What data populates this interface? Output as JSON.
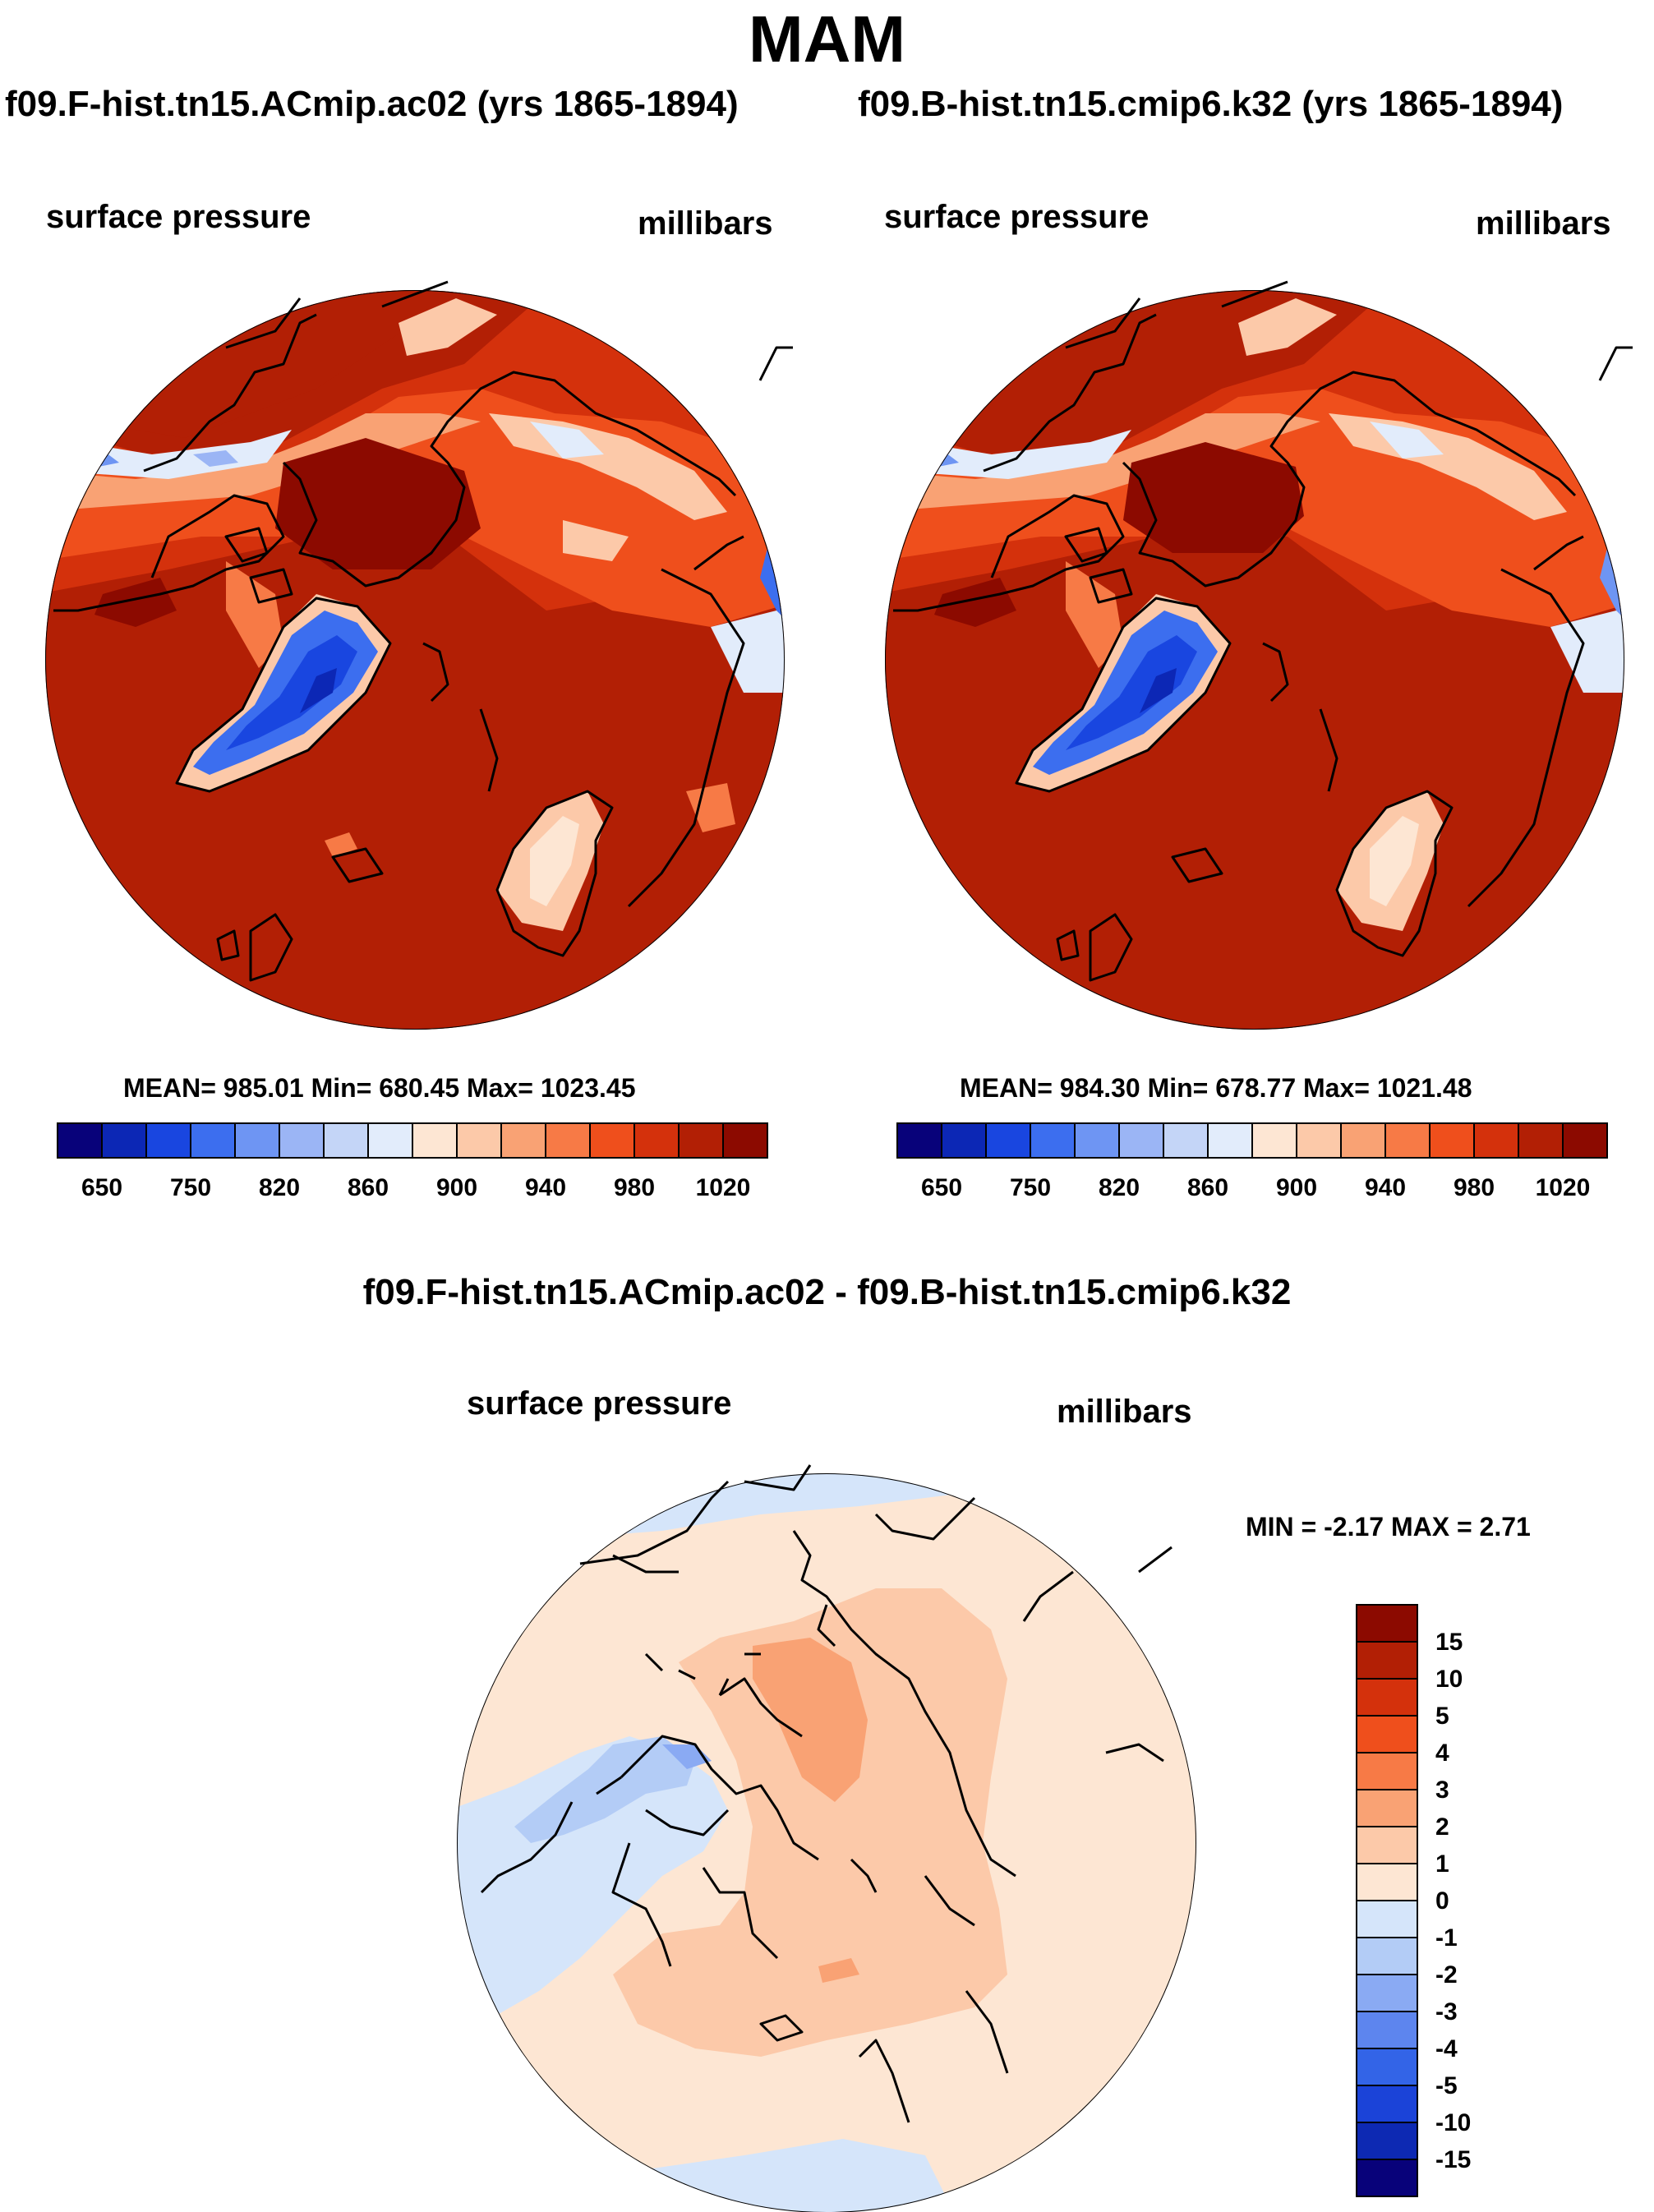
{
  "season": "MAM",
  "panels": [
    {
      "run": "f09.F-hist.tn15.ACmip.ac02 (yrs 1865-1894)",
      "variable": "surface pressure",
      "units": "millibars",
      "stats": "MEAN= 985.01  Min= 680.45  Max= 1023.45",
      "mean": 985.01,
      "min": 680.45,
      "max": 1023.45
    },
    {
      "run": "f09.B-hist.tn15.cmip6.k32 (yrs 1865-1894)",
      "variable": "surface pressure",
      "units": "millibars",
      "stats": "MEAN= 984.30  Min= 678.77  Max= 1021.48",
      "mean": 984.3,
      "min": 678.77,
      "max": 1021.48
    }
  ],
  "colorbar": {
    "labels": [
      "650",
      "750",
      "820",
      "860",
      "900",
      "940",
      "980",
      "1020"
    ],
    "colors": [
      "#08027a",
      "#0c27b5",
      "#1946e0",
      "#3c6eef",
      "#6e95f3",
      "#9bb5f5",
      "#c4d5f7",
      "#e2ecfb",
      "#fde6d3",
      "#fcc9a9",
      "#f9a274",
      "#f77a46",
      "#ef4f1c",
      "#d4310c",
      "#b21f05",
      "#8c0a00"
    ]
  },
  "difference": {
    "title": "f09.F-hist.tn15.ACmip.ac02 - f09.B-hist.tn15.cmip6.k32",
    "variable": "surface pressure",
    "units": "millibars",
    "min_max": "MIN =  -2.17 MAX =   2.71",
    "min": -2.17,
    "max": 2.71,
    "colorbar": {
      "labels": [
        "15",
        "10",
        "5",
        "4",
        "3",
        "2",
        "1",
        "0",
        "-1",
        "-2",
        "-3",
        "-4",
        "-5",
        "-10",
        "-15"
      ],
      "colors": [
        "#8c0a00",
        "#b21f05",
        "#d4310c",
        "#ef4f1c",
        "#f77a46",
        "#f9a274",
        "#fcc9a9",
        "#fde6d3",
        "#d5e5fa",
        "#b3ccf6",
        "#8aaaf3",
        "#5d85ee",
        "#3364e7",
        "#1b43d8",
        "#0d29b3",
        "#08027a"
      ]
    }
  }
}
